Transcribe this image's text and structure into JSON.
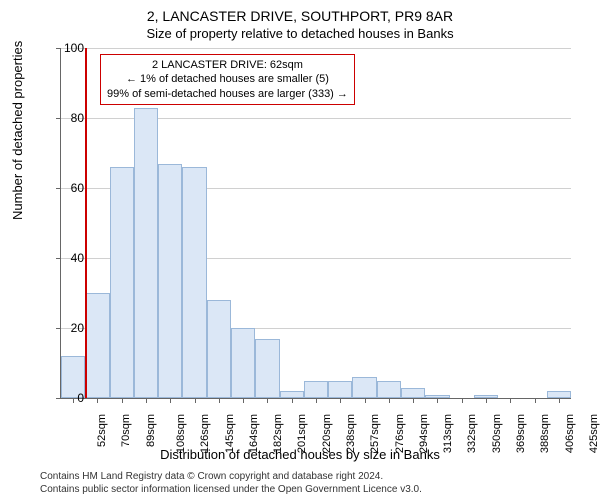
{
  "title": "2, LANCASTER DRIVE, SOUTHPORT, PR9 8AR",
  "subtitle": "Size of property relative to detached houses in Banks",
  "ylabel": "Number of detached properties",
  "xlabel": "Distribution of detached houses by size in Banks",
  "chart": {
    "type": "histogram",
    "ylim": [
      0,
      100
    ],
    "ytick_step": 20,
    "yticks": [
      0,
      20,
      40,
      60,
      80,
      100
    ],
    "bar_fill": "#dbe7f6",
    "bar_stroke": "#9bb8d9",
    "grid_color": "#d0d0d0",
    "axis_color": "#666666",
    "background_color": "#ffffff",
    "marker_color": "#cc0000",
    "marker_bin_index": 1,
    "xtick_labels": [
      "52sqm",
      "70sqm",
      "89sqm",
      "108sqm",
      "126sqm",
      "145sqm",
      "164sqm",
      "182sqm",
      "201sqm",
      "220sqm",
      "238sqm",
      "257sqm",
      "276sqm",
      "294sqm",
      "313sqm",
      "332sqm",
      "350sqm",
      "369sqm",
      "388sqm",
      "406sqm",
      "425sqm"
    ],
    "values": [
      12,
      30,
      66,
      83,
      67,
      66,
      28,
      20,
      17,
      2,
      5,
      5,
      6,
      5,
      3,
      1,
      0,
      1,
      0,
      0,
      2
    ]
  },
  "annotation": {
    "line1": "2 LANCASTER DRIVE: 62sqm",
    "line2": "← 1% of detached houses are smaller (5)",
    "line3": "99% of semi-detached houses are larger (333) →",
    "border_color": "#cc0000",
    "background_color": "#ffffff",
    "fontsize": 11
  },
  "footer": {
    "line1": "Contains HM Land Registry data © Crown copyright and database right 2024.",
    "line2": "Contains public sector information licensed under the Open Government Licence v3.0."
  }
}
